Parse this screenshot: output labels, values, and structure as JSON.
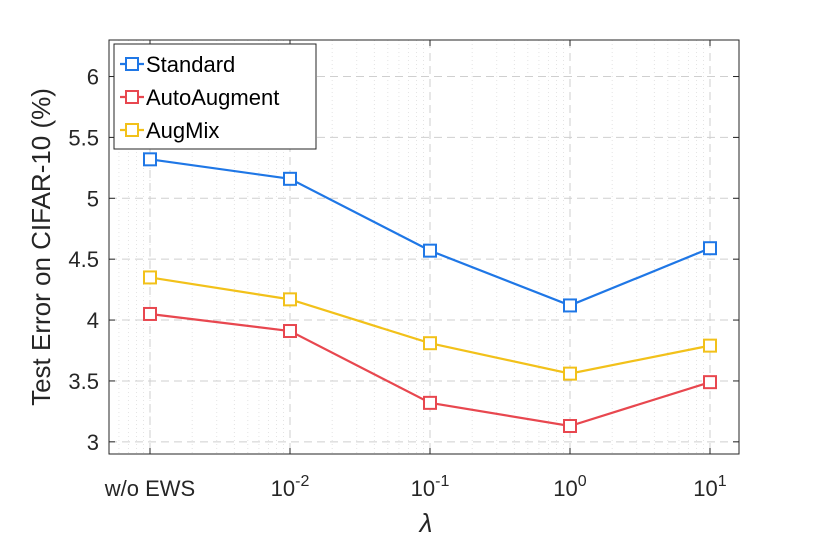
{
  "chart_data": {
    "type": "line",
    "title": "",
    "xlabel": "λ",
    "ylabel": "Test Error on CIFAR-10 (%)",
    "categories": [
      "w/o EWS",
      "10^-2",
      "10^-1",
      "10^0",
      "10^1"
    ],
    "x_tick_labels": [
      {
        "base": "w/o EWS",
        "exp": ""
      },
      {
        "base": "10",
        "exp": "-2"
      },
      {
        "base": "10",
        "exp": "-1"
      },
      {
        "base": "10",
        "exp": "0"
      },
      {
        "base": "10",
        "exp": "1"
      }
    ],
    "ylim": [
      2.9,
      6.3
    ],
    "yticks": [
      3,
      3.5,
      4,
      4.5,
      5,
      5.5,
      6
    ],
    "ytick_labels": [
      "3",
      "3.5",
      "4",
      "4.5",
      "5",
      "5.5",
      "6"
    ],
    "grid": true,
    "legend_position": "top-left",
    "series": [
      {
        "name": "Standard",
        "color": "#1f77e6",
        "values": [
          5.32,
          5.16,
          4.57,
          4.12,
          4.59
        ]
      },
      {
        "name": "AutoAugment",
        "color": "#e8474f",
        "values": [
          4.05,
          3.91,
          3.32,
          3.13,
          3.49
        ]
      },
      {
        "name": "AugMix",
        "color": "#f2c11a",
        "values": [
          4.35,
          4.17,
          3.81,
          3.56,
          3.79
        ]
      }
    ]
  }
}
